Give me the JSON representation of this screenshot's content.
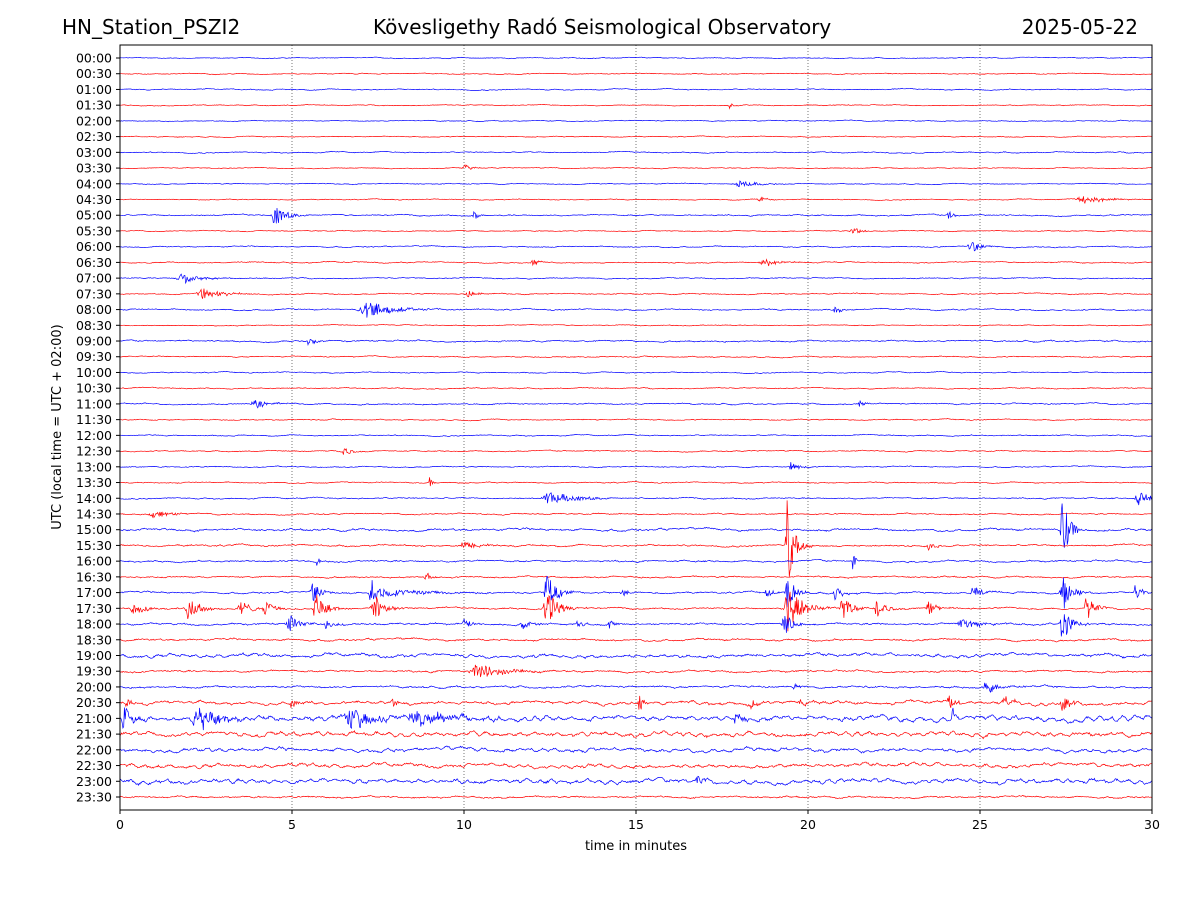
{
  "header": {
    "station": "HN_Station_PSZI2",
    "observatory": "Kövesligethy Radó Seismological Observatory",
    "date": "2025-05-22"
  },
  "colors": {
    "even_row": "#0000ff",
    "odd_row": "#ff0000",
    "grid": "#555555",
    "axis": "#000000"
  },
  "chart_data": {
    "type": "line",
    "title": "Kövesligethy Radó Seismological Observatory",
    "xlabel": "time in minutes",
    "ylabel": "UTC (local time = UTC + 02:00)",
    "xlim": [
      0,
      30
    ],
    "xticks": [
      "0",
      "5",
      "10",
      "15",
      "20",
      "25",
      "30"
    ],
    "grid": "vertical dotted at x ticks",
    "row_labels": [
      "00:00",
      "00:30",
      "01:00",
      "01:30",
      "02:00",
      "02:30",
      "03:00",
      "03:30",
      "04:00",
      "04:30",
      "05:00",
      "05:30",
      "06:00",
      "06:30",
      "07:00",
      "07:30",
      "08:00",
      "08:30",
      "09:00",
      "09:30",
      "10:00",
      "10:30",
      "11:00",
      "11:30",
      "12:00",
      "12:30",
      "13:00",
      "13:30",
      "14:00",
      "14:30",
      "15:00",
      "15:30",
      "16:00",
      "16:30",
      "17:00",
      "17:30",
      "18:00",
      "18:30",
      "19:00",
      "19:30",
      "20:00",
      "20:30",
      "21:00",
      "21:30",
      "22:00",
      "22:30",
      "23:00",
      "23:30"
    ],
    "row_colors": "alternating blue (hour) / red (half hour)",
    "noise_level": [
      0.4,
      0.4,
      0.5,
      0.4,
      0.4,
      0.4,
      0.5,
      0.4,
      0.4,
      0.4,
      0.6,
      0.4,
      0.5,
      0.5,
      0.5,
      0.5,
      0.6,
      0.4,
      0.7,
      0.5,
      0.5,
      0.5,
      0.6,
      0.5,
      0.5,
      0.5,
      0.5,
      0.5,
      0.6,
      0.6,
      1.0,
      0.8,
      0.8,
      0.7,
      0.8,
      0.7,
      0.9,
      0.9,
      1.3,
      0.9,
      0.9,
      1.3,
      1.8,
      1.6,
      1.4,
      1.4,
      1.6,
      0.8
    ],
    "events": [
      {
        "row": 3,
        "t": 17.7,
        "amp": 1.5,
        "dur": 0.2
      },
      {
        "row": 7,
        "t": 10.0,
        "amp": 1.5,
        "dur": 0.3
      },
      {
        "row": 8,
        "t": 18.0,
        "amp": 1.2,
        "dur": 0.8
      },
      {
        "row": 9,
        "t": 28.0,
        "amp": 1.5,
        "dur": 1.0
      },
      {
        "row": 9,
        "t": 18.6,
        "amp": 1.2,
        "dur": 0.4
      },
      {
        "row": 10,
        "t": 4.5,
        "amp": 4.0,
        "dur": 0.5
      },
      {
        "row": 10,
        "t": 10.3,
        "amp": 2.0,
        "dur": 0.2
      },
      {
        "row": 10,
        "t": 24.1,
        "amp": 2.0,
        "dur": 0.2
      },
      {
        "row": 11,
        "t": 21.3,
        "amp": 1.5,
        "dur": 0.4
      },
      {
        "row": 12,
        "t": 24.7,
        "amp": 3.0,
        "dur": 0.4
      },
      {
        "row": 13,
        "t": 12.0,
        "amp": 2.0,
        "dur": 0.2
      },
      {
        "row": 13,
        "t": 18.7,
        "amp": 2.0,
        "dur": 0.6
      },
      {
        "row": 14,
        "t": 1.8,
        "amp": 2.0,
        "dur": 0.8
      },
      {
        "row": 15,
        "t": 2.4,
        "amp": 2.5,
        "dur": 0.8
      },
      {
        "row": 15,
        "t": 10.1,
        "amp": 1.5,
        "dur": 0.4
      },
      {
        "row": 16,
        "t": 7.2,
        "amp": 3.0,
        "dur": 1.2
      },
      {
        "row": 16,
        "t": 20.8,
        "amp": 1.5,
        "dur": 0.3
      },
      {
        "row": 18,
        "t": 5.5,
        "amp": 2.0,
        "dur": 0.3
      },
      {
        "row": 22,
        "t": 3.9,
        "amp": 1.8,
        "dur": 0.6
      },
      {
        "row": 22,
        "t": 21.5,
        "amp": 1.5,
        "dur": 0.2
      },
      {
        "row": 25,
        "t": 6.5,
        "amp": 2.0,
        "dur": 0.3
      },
      {
        "row": 26,
        "t": 19.5,
        "amp": 2.0,
        "dur": 0.4
      },
      {
        "row": 27,
        "t": 9.0,
        "amp": 2.5,
        "dur": 0.1
      },
      {
        "row": 28,
        "t": 12.5,
        "amp": 2.5,
        "dur": 1.2
      },
      {
        "row": 28,
        "t": 29.6,
        "amp": 3.0,
        "dur": 0.5
      },
      {
        "row": 29,
        "t": 1.0,
        "amp": 1.5,
        "dur": 0.8
      },
      {
        "row": 30,
        "t": 27.4,
        "amp": 14.0,
        "dur": 0.3
      },
      {
        "row": 31,
        "t": 19.4,
        "amp": 18.0,
        "dur": 0.3
      },
      {
        "row": 31,
        "t": 10.0,
        "amp": 1.5,
        "dur": 0.8
      },
      {
        "row": 31,
        "t": 23.5,
        "amp": 2.0,
        "dur": 0.3
      },
      {
        "row": 32,
        "t": 21.3,
        "amp": 6.0,
        "dur": 0.1
      },
      {
        "row": 32,
        "t": 5.7,
        "amp": 5.0,
        "dur": 0.1
      },
      {
        "row": 33,
        "t": 8.9,
        "amp": 1.5,
        "dur": 0.3
      },
      {
        "row": 34,
        "t": 5.6,
        "amp": 6.0,
        "dur": 0.3
      },
      {
        "row": 34,
        "t": 7.3,
        "amp": 6.0,
        "dur": 0.3
      },
      {
        "row": 34,
        "t": 12.4,
        "amp": 8.0,
        "dur": 0.4
      },
      {
        "row": 34,
        "t": 7.8,
        "amp": 1.5,
        "dur": 2.0
      },
      {
        "row": 34,
        "t": 14.6,
        "amp": 2.0,
        "dur": 0.3
      },
      {
        "row": 34,
        "t": 18.8,
        "amp": 2.0,
        "dur": 0.3
      },
      {
        "row": 34,
        "t": 19.4,
        "amp": 8.0,
        "dur": 0.3
      },
      {
        "row": 34,
        "t": 20.8,
        "amp": 3.0,
        "dur": 0.3
      },
      {
        "row": 34,
        "t": 24.8,
        "amp": 3.5,
        "dur": 0.3
      },
      {
        "row": 34,
        "t": 27.4,
        "amp": 8.0,
        "dur": 0.4
      },
      {
        "row": 34,
        "t": 29.5,
        "amp": 3.5,
        "dur": 0.3
      },
      {
        "row": 35,
        "t": 0.4,
        "amp": 3.0,
        "dur": 0.5
      },
      {
        "row": 35,
        "t": 2.0,
        "amp": 5.0,
        "dur": 0.5
      },
      {
        "row": 35,
        "t": 3.5,
        "amp": 4.0,
        "dur": 0.4
      },
      {
        "row": 35,
        "t": 4.2,
        "amp": 3.0,
        "dur": 0.4
      },
      {
        "row": 35,
        "t": 5.7,
        "amp": 6.0,
        "dur": 0.5
      },
      {
        "row": 35,
        "t": 7.4,
        "amp": 5.0,
        "dur": 0.5
      },
      {
        "row": 35,
        "t": 12.4,
        "amp": 7.0,
        "dur": 0.5
      },
      {
        "row": 35,
        "t": 19.4,
        "amp": 10.0,
        "dur": 0.6
      },
      {
        "row": 35,
        "t": 21.0,
        "amp": 5.0,
        "dur": 0.4
      },
      {
        "row": 35,
        "t": 22.0,
        "amp": 4.0,
        "dur": 0.4
      },
      {
        "row": 35,
        "t": 23.5,
        "amp": 3.0,
        "dur": 0.4
      },
      {
        "row": 35,
        "t": 28.1,
        "amp": 5.0,
        "dur": 0.4
      },
      {
        "row": 36,
        "t": 4.9,
        "amp": 4.0,
        "dur": 0.4
      },
      {
        "row": 36,
        "t": 6.0,
        "amp": 2.5,
        "dur": 0.3
      },
      {
        "row": 36,
        "t": 10.0,
        "amp": 2.5,
        "dur": 0.3
      },
      {
        "row": 36,
        "t": 11.7,
        "amp": 1.5,
        "dur": 0.5
      },
      {
        "row": 36,
        "t": 13.3,
        "amp": 2.0,
        "dur": 0.2
      },
      {
        "row": 36,
        "t": 14.2,
        "amp": 2.5,
        "dur": 0.2
      },
      {
        "row": 36,
        "t": 19.3,
        "amp": 6.0,
        "dur": 0.3
      },
      {
        "row": 36,
        "t": 24.5,
        "amp": 2.0,
        "dur": 0.8
      },
      {
        "row": 36,
        "t": 27.4,
        "amp": 7.0,
        "dur": 0.4
      },
      {
        "row": 39,
        "t": 10.4,
        "amp": 3.0,
        "dur": 1.2
      },
      {
        "row": 40,
        "t": 25.2,
        "amp": 2.5,
        "dur": 0.6
      },
      {
        "row": 40,
        "t": 19.6,
        "amp": 1.5,
        "dur": 0.2
      },
      {
        "row": 41,
        "t": 0.2,
        "amp": 2.0,
        "dur": 0.3
      },
      {
        "row": 41,
        "t": 5.0,
        "amp": 2.0,
        "dur": 0.3
      },
      {
        "row": 41,
        "t": 7.9,
        "amp": 2.0,
        "dur": 0.3
      },
      {
        "row": 41,
        "t": 15.1,
        "amp": 3.5,
        "dur": 0.2
      },
      {
        "row": 41,
        "t": 18.3,
        "amp": 2.5,
        "dur": 0.3
      },
      {
        "row": 41,
        "t": 19.8,
        "amp": 2.0,
        "dur": 0.3
      },
      {
        "row": 41,
        "t": 24.1,
        "amp": 3.5,
        "dur": 0.3
      },
      {
        "row": 41,
        "t": 25.7,
        "amp": 2.5,
        "dur": 0.4
      },
      {
        "row": 41,
        "t": 27.4,
        "amp": 3.0,
        "dur": 0.4
      },
      {
        "row": 42,
        "t": 0.1,
        "amp": 5.0,
        "dur": 0.4
      },
      {
        "row": 42,
        "t": 2.3,
        "amp": 5.0,
        "dur": 1.0
      },
      {
        "row": 42,
        "t": 6.7,
        "amp": 4.0,
        "dur": 1.0
      },
      {
        "row": 42,
        "t": 8.6,
        "amp": 3.0,
        "dur": 1.5
      },
      {
        "row": 42,
        "t": 17.9,
        "amp": 2.0,
        "dur": 0.3
      },
      {
        "row": 42,
        "t": 24.2,
        "amp": 5.0,
        "dur": 0.1
      },
      {
        "row": 46,
        "t": 16.8,
        "amp": 2.0,
        "dur": 0.4
      }
    ]
  }
}
